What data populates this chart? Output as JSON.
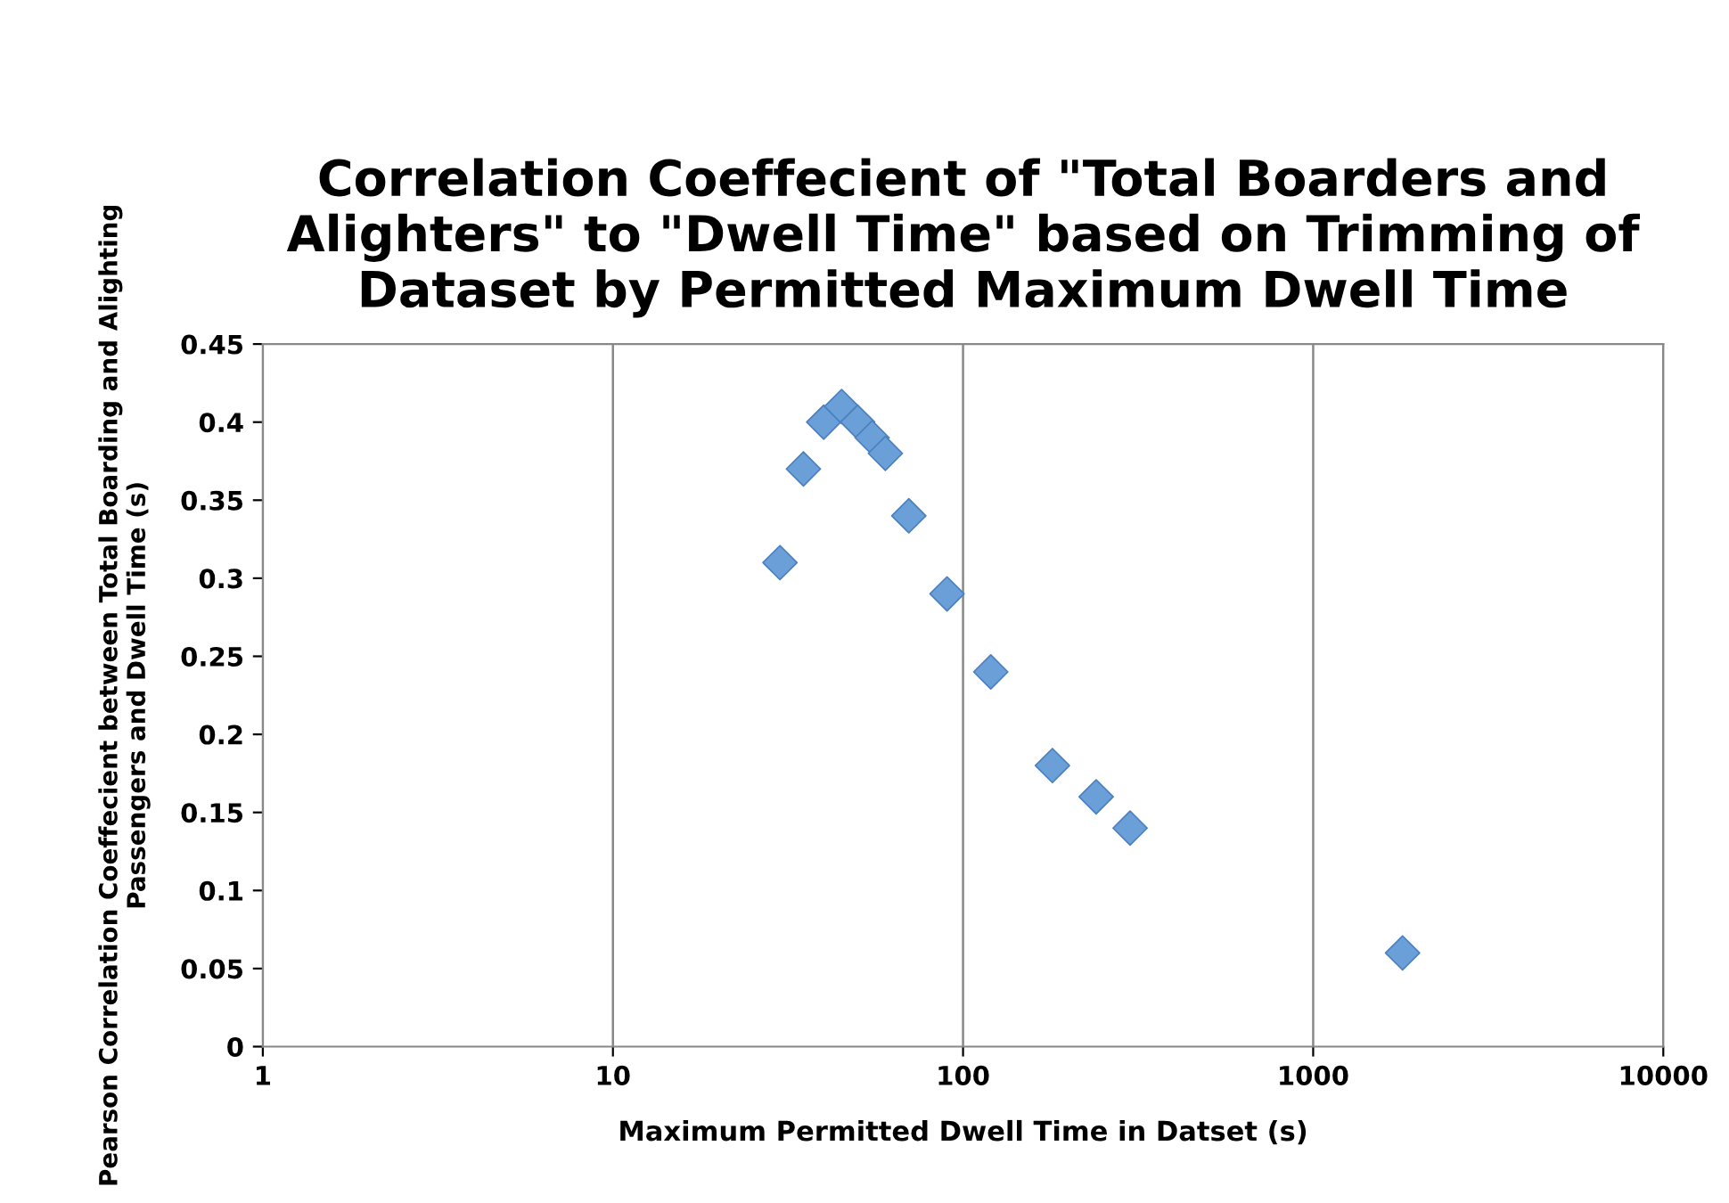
{
  "chart_data": {
    "type": "scatter",
    "title": "Correlation Coeffecient of \"Total Boarders and Alighters\" to \"Dwell Time\" based on Trimming of Dataset by Permitted Maximum Dwell Time",
    "xlabel": "Maximum Permitted Dwell Time in Datset (s)",
    "ylabel": "Pearson Correlation Coeffecient between Total Boarding and Alighting Passengers and Dwell Time (s)",
    "x": [
      30,
      35,
      40,
      45,
      50,
      55,
      60,
      70,
      90,
      120,
      180,
      240,
      300,
      1800
    ],
    "series": [
      {
        "color": "#6a9fd8",
        "values": [
          0.31,
          0.37,
          0.4,
          0.41,
          0.4,
          0.39,
          0.38,
          0.34,
          0.29,
          0.24,
          0.18,
          0.16,
          0.14,
          0.06
        ]
      }
    ],
    "log": "x",
    "xlim": [
      1,
      10000
    ],
    "xticks": [
      1,
      10,
      100,
      1000,
      10000
    ],
    "ylim": [
      0,
      0.45
    ],
    "yticks": [
      0,
      0.05,
      0.1,
      0.15,
      0.2,
      0.25,
      0.3,
      0.35,
      0.4,
      0.45
    ],
    "grid": "x",
    "marker": "diamond"
  }
}
